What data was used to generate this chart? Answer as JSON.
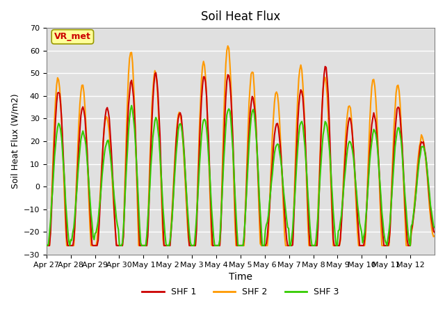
{
  "title": "Soil Heat Flux",
  "xlabel": "Time",
  "ylabel": "Soil Heat Flux (W/m2)",
  "ylim": [
    -30,
    70
  ],
  "yticks": [
    -30,
    -20,
    -10,
    0,
    10,
    20,
    30,
    40,
    50,
    60,
    70
  ],
  "xtick_labels": [
    "Apr 27",
    "Apr 28",
    "Apr 29",
    "Apr 30",
    "May 1",
    "May 2",
    "May 3",
    "May 4",
    "May 5",
    "May 6",
    "May 7",
    "May 8",
    "May 9",
    "May 10",
    "May 11",
    "May 12"
  ],
  "colors": {
    "SHF 1": "#cc0000",
    "SHF 2": "#ff9900",
    "SHF 3": "#33cc00"
  },
  "bg_color": "#e0e0e0",
  "annotation_text": "VR_met",
  "annotation_color": "#cc0000",
  "annotation_bg": "#ffff99",
  "annotation_border": "#999900",
  "grid_color": "#ffffff",
  "line_width": 1.5,
  "n_days": 16,
  "amp_shf1": [
    42,
    35,
    35,
    47,
    50,
    33,
    49,
    50,
    40,
    28,
    43,
    53,
    30,
    32,
    35,
    20
  ],
  "amp_shf2": [
    48,
    45,
    31,
    60,
    51,
    33,
    55,
    63,
    51,
    42,
    54,
    48,
    36,
    48,
    45,
    22
  ],
  "amp_shf3": [
    28,
    24,
    20,
    35,
    30,
    28,
    30,
    35,
    34,
    19,
    29,
    29,
    20,
    25,
    26,
    18
  ]
}
